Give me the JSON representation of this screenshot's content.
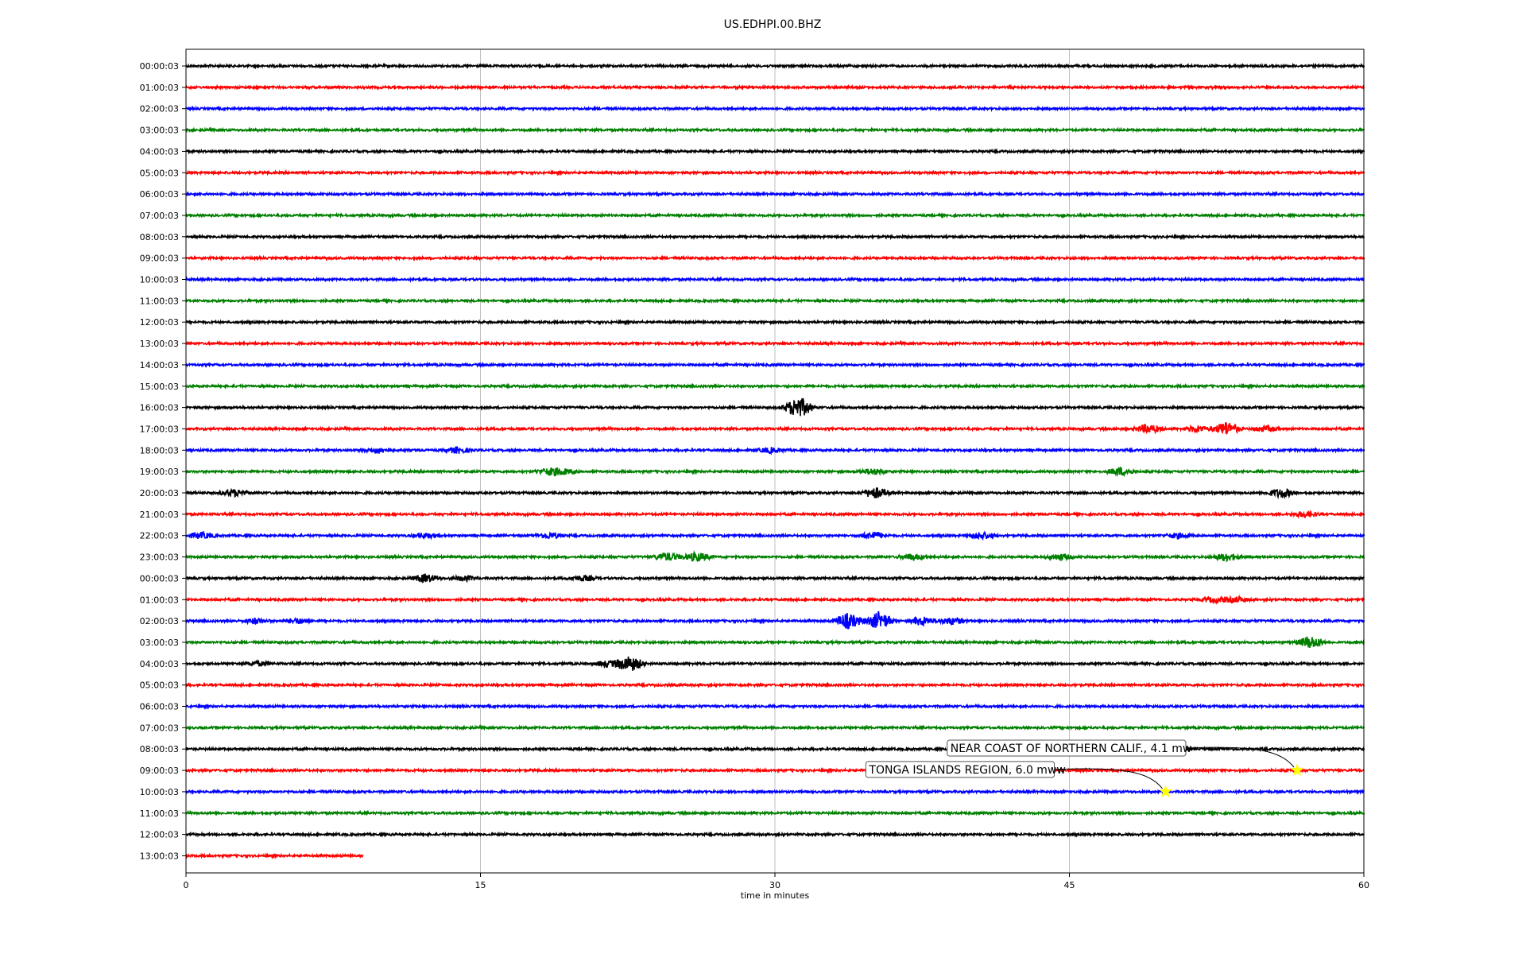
{
  "chart_data": {
    "type": "line",
    "title": "US.EDHPI.00.BHZ",
    "xlabel": "time in minutes",
    "ylabel": "",
    "xlim": [
      0,
      60
    ],
    "x_ticks": [
      0,
      15,
      30,
      45,
      60
    ],
    "grid": "vertical",
    "trace_colors": [
      "#000000",
      "#ff0000",
      "#0000ff",
      "#008000"
    ],
    "rows": [
      "00:00:03",
      "01:00:03",
      "02:00:03",
      "03:00:03",
      "04:00:03",
      "05:00:03",
      "06:00:03",
      "07:00:03",
      "08:00:03",
      "09:00:03",
      "10:00:03",
      "11:00:03",
      "12:00:03",
      "13:00:03",
      "14:00:03",
      "15:00:03",
      "16:00:03",
      "17:00:03",
      "18:00:03",
      "19:00:03",
      "20:00:03",
      "21:00:03",
      "22:00:03",
      "23:00:03",
      "00:00:03",
      "01:00:03",
      "02:00:03",
      "03:00:03",
      "04:00:03",
      "05:00:03",
      "06:00:03",
      "07:00:03",
      "08:00:03",
      "09:00:03",
      "10:00:03",
      "11:00:03",
      "12:00:03",
      "13:00:03"
    ],
    "last_row_end_minute": 9,
    "bursts": [
      {
        "row": 16,
        "minute": 31.2,
        "amp": 2.2
      },
      {
        "row": 17,
        "minute": 49.0,
        "amp": 0.9
      },
      {
        "row": 17,
        "minute": 51.5,
        "amp": 0.6
      },
      {
        "row": 17,
        "minute": 53.0,
        "amp": 1.4
      },
      {
        "row": 17,
        "minute": 55.0,
        "amp": 0.5
      },
      {
        "row": 18,
        "minute": 9.8,
        "amp": 0.5
      },
      {
        "row": 18,
        "minute": 13.8,
        "amp": 0.6
      },
      {
        "row": 18,
        "minute": 29.8,
        "amp": 0.5
      },
      {
        "row": 19,
        "minute": 18.5,
        "amp": 0.6
      },
      {
        "row": 19,
        "minute": 19.2,
        "amp": 0.5
      },
      {
        "row": 19,
        "minute": 35.0,
        "amp": 0.6
      },
      {
        "row": 19,
        "minute": 47.6,
        "amp": 0.8
      },
      {
        "row": 20,
        "minute": 2.4,
        "amp": 0.7
      },
      {
        "row": 20,
        "minute": 35.1,
        "amp": 1.1
      },
      {
        "row": 20,
        "minute": 55.8,
        "amp": 0.9
      },
      {
        "row": 21,
        "minute": 57.0,
        "amp": 0.6
      },
      {
        "row": 22,
        "minute": 0.8,
        "amp": 0.6
      },
      {
        "row": 22,
        "minute": 12.2,
        "amp": 0.5
      },
      {
        "row": 22,
        "minute": 18.5,
        "amp": 0.6
      },
      {
        "row": 22,
        "minute": 35.0,
        "amp": 0.7
      },
      {
        "row": 22,
        "minute": 40.5,
        "amp": 0.7
      },
      {
        "row": 22,
        "minute": 50.5,
        "amp": 0.5
      },
      {
        "row": 23,
        "minute": 24.5,
        "amp": 0.8
      },
      {
        "row": 23,
        "minute": 26.0,
        "amp": 0.9
      },
      {
        "row": 23,
        "minute": 37.0,
        "amp": 0.6
      },
      {
        "row": 23,
        "minute": 44.5,
        "amp": 0.6
      },
      {
        "row": 23,
        "minute": 53.0,
        "amp": 0.8
      },
      {
        "row": 24,
        "minute": 12.2,
        "amp": 0.8
      },
      {
        "row": 24,
        "minute": 14.2,
        "amp": 0.5
      },
      {
        "row": 24,
        "minute": 20.2,
        "amp": 0.5
      },
      {
        "row": 25,
        "minute": 52.4,
        "amp": 0.5
      },
      {
        "row": 25,
        "minute": 53.5,
        "amp": 0.5
      },
      {
        "row": 26,
        "minute": 3.5,
        "amp": 0.5
      },
      {
        "row": 26,
        "minute": 5.7,
        "amp": 0.5
      },
      {
        "row": 26,
        "minute": 33.7,
        "amp": 1.6
      },
      {
        "row": 26,
        "minute": 35.3,
        "amp": 1.8
      },
      {
        "row": 26,
        "minute": 37.5,
        "amp": 0.9
      },
      {
        "row": 26,
        "minute": 39.0,
        "amp": 0.7
      },
      {
        "row": 27,
        "minute": 57.3,
        "amp": 1.2
      },
      {
        "row": 28,
        "minute": 22.6,
        "amp": 1.6
      },
      {
        "row": 28,
        "minute": 21.5,
        "amp": 0.6
      },
      {
        "row": 28,
        "minute": 3.7,
        "amp": 0.4
      }
    ],
    "events": [
      {
        "label": "NEAR COAST OF NORTHERN CALIF., 4.1 mw",
        "row": 33,
        "minute": 56.6,
        "marker": "star",
        "marker_color": "#ffff00"
      },
      {
        "label": "TONGA ISLANDS REGION, 6.0 mww",
        "row": 34,
        "minute": 49.9,
        "marker": "star",
        "marker_color": "#ffff00"
      }
    ]
  }
}
